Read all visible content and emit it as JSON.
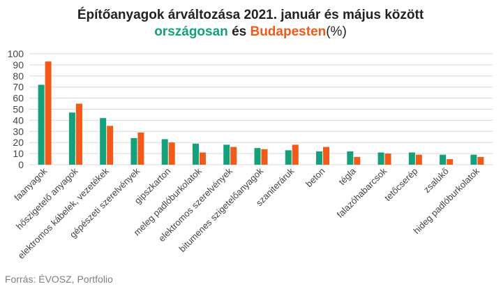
{
  "title": "Építőanyagok árváltozása 2021. január és május között",
  "subtitle": {
    "series1_label": "országosan",
    "conjunction": "és",
    "series2_label": "Budapesten",
    "unit": "(%)"
  },
  "source": "Forrás: ÉVOSZ, Portfolio",
  "colors": {
    "series1": "#14a07a",
    "series2": "#f05a1a",
    "grid": "#d9d9d9",
    "axis_text": "#444444"
  },
  "chart_data": {
    "type": "bar",
    "ylim": [
      0,
      100
    ],
    "yticks": [
      0,
      10,
      20,
      30,
      40,
      50,
      60,
      70,
      80,
      90,
      100
    ],
    "grid": true,
    "categories": [
      "faanyagok",
      "hőszigetelő anyagok",
      "elektromos kábelek, vezetékek",
      "gépészeti szerelvények",
      "gipszkarton",
      "meleg padlóburkolatok",
      "elektromos szerelvények",
      "bitumenes szigetelőanyagok",
      "szaniteráruk",
      "beton",
      "tégla",
      "falazóhabarcsok",
      "tetőcserép",
      "zsalukő",
      "hideg padlóburkolatok"
    ],
    "series": [
      {
        "name": "országosan",
        "values": [
          72,
          47,
          42,
          24,
          23,
          19,
          18,
          15,
          13,
          12,
          12,
          11,
          11,
          9,
          9
        ]
      },
      {
        "name": "Budapesten",
        "values": [
          93,
          55,
          35,
          29,
          20,
          11,
          16,
          14,
          18,
          16,
          7,
          10,
          9,
          5,
          7
        ]
      }
    ]
  }
}
